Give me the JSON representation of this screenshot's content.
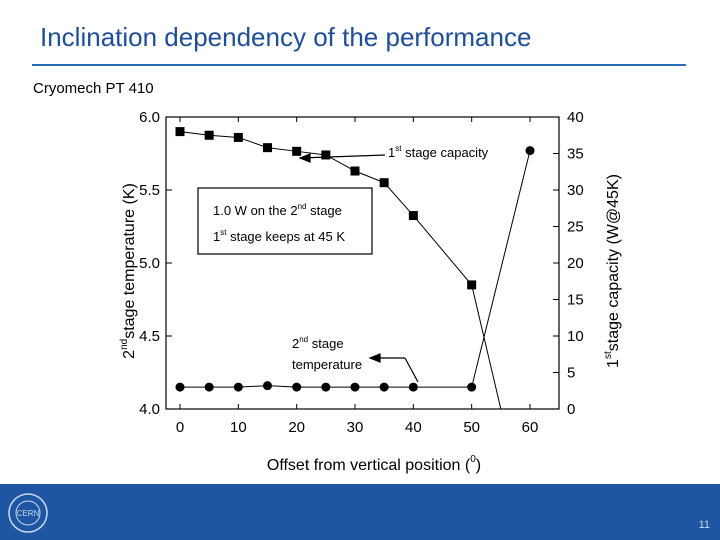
{
  "slide": {
    "title": "Inclination dependency of the performance",
    "subtitle": "Cryomech PT 410",
    "page_number": "11",
    "logo_text": "CERN",
    "accent_color": "#2b6bb3",
    "footer_color": "#1f56a4"
  },
  "chart_data": {
    "type": "line",
    "xlabel": "Offset from vertical position",
    "xlabel_superscript": "0",
    "xlabel_open": " (",
    "xlabel_close": ")",
    "xlim": [
      0,
      60
    ],
    "x_ticks": [
      "0",
      "10",
      "20",
      "30",
      "40",
      "50",
      "60"
    ],
    "ylabel_left": "stage temperature (K)",
    "ylabel_left_prefix": "2",
    "ylabel_left_superscript": "nd",
    "ylim_left": [
      4.0,
      6.0
    ],
    "y_ticks_left": [
      "4.0",
      "4.5",
      "5.0",
      "5.5",
      "6.0"
    ],
    "ylabel_right": "stage capacity (W@45K)",
    "ylabel_right_prefix": "1",
    "ylabel_right_superscript": "st",
    "ylim_right": [
      0,
      40
    ],
    "y_ticks_right": [
      "0",
      "5",
      "10",
      "15",
      "20",
      "25",
      "30",
      "35",
      "40"
    ],
    "series": [
      {
        "name": "1st stage capacity",
        "axis": "right",
        "marker": "square",
        "x": [
          0,
          5,
          10,
          15,
          20,
          25,
          30,
          35,
          40,
          50,
          55
        ],
        "y": [
          38.0,
          37.5,
          37.2,
          35.8,
          35.3,
          34.8,
          32.6,
          31.0,
          26.5,
          17.0,
          0
        ]
      },
      {
        "name": "2nd stage temperature",
        "axis": "left",
        "marker": "circle",
        "x": [
          0,
          5,
          10,
          15,
          20,
          25,
          30,
          35,
          40,
          50,
          60
        ],
        "y": [
          4.15,
          4.15,
          4.15,
          4.16,
          4.15,
          4.15,
          4.15,
          4.15,
          4.15,
          4.15,
          5.77
        ]
      }
    ],
    "annotations": {
      "capacity_label": {
        "prefix": "1",
        "sup": "st",
        "text": " stage capacity"
      },
      "temperature_label": {
        "prefix": "2",
        "sup": "nd",
        "line1": " stage",
        "line2": "temperature"
      },
      "box_line1": {
        "text": "1.0 W on the 2",
        "sup": "nd",
        "suffix": " stage"
      },
      "box_line2": {
        "prefix": "1",
        "sup": "st",
        "text": " stage keeps at 45 K"
      }
    }
  }
}
